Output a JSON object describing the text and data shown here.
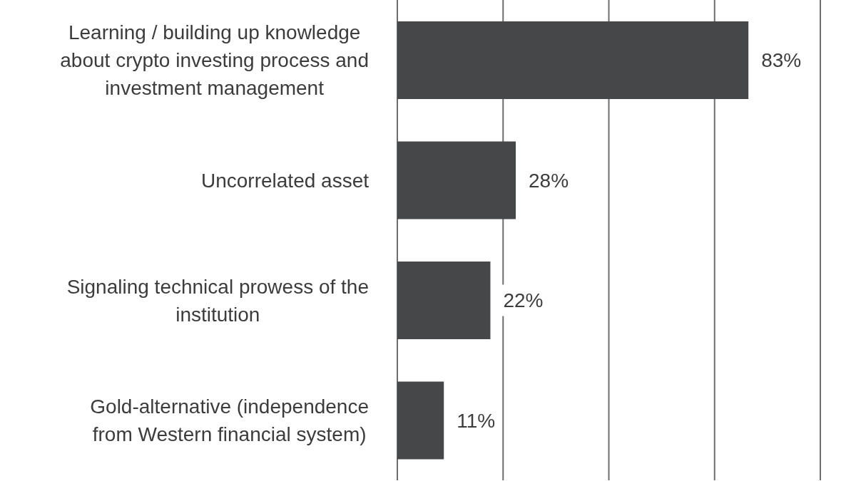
{
  "chart_data": {
    "type": "bar",
    "orientation": "horizontal",
    "categories": [
      "Learning / building up knowledge about crypto investing process and investment management",
      "Uncorrelated asset",
      "Signaling technical prowess of the institution",
      "Gold-alternative (independence from Western financial system)"
    ],
    "values": [
      83,
      28,
      22,
      11
    ],
    "value_labels": [
      "83%",
      "28%",
      "22%",
      "11%"
    ],
    "color": "#464749",
    "xlim": [
      0,
      100
    ],
    "xticks": [
      {
        "value": 0,
        "label": null
      },
      {
        "value": 25,
        "label": null
      },
      {
        "value": 50,
        "label": null
      },
      {
        "value": 75,
        "label": null
      },
      {
        "value": 100,
        "label": null
      }
    ],
    "grid": "x",
    "tick_labels": "y"
  }
}
